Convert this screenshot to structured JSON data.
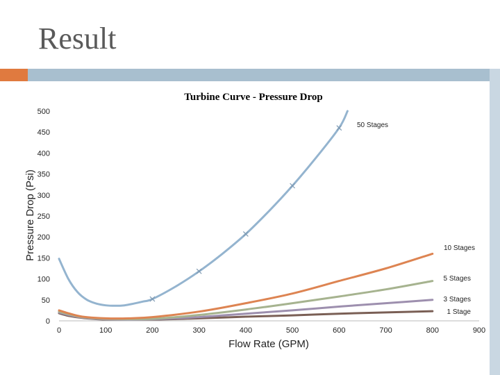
{
  "slide": {
    "title": "Result"
  },
  "theme": {
    "accent": "#e07a3f",
    "rule": "#a8bfcf"
  },
  "chart_data": {
    "type": "line",
    "title": "Turbine Curve - Pressure Drop",
    "xlabel": "Flow Rate (GPM)",
    "ylabel": "Pressure Drop (Psi)",
    "xlim": [
      0,
      900
    ],
    "ylim": [
      0,
      500
    ],
    "xticks": [
      0,
      100,
      200,
      300,
      400,
      500,
      600,
      700,
      800,
      900
    ],
    "yticks": [
      0,
      50,
      100,
      150,
      200,
      250,
      300,
      350,
      400,
      450,
      500
    ],
    "series": [
      {
        "name": "50 Stages",
        "color": "#94b4cf",
        "width": 3,
        "x": [
          0,
          20,
          40,
          60,
          80,
          100,
          120,
          140,
          160,
          180,
          200,
          250,
          300,
          350,
          400,
          450,
          500,
          550,
          600,
          618
        ],
        "y": [
          148,
          100,
          68,
          50,
          41,
          37,
          36,
          37,
          41,
          46,
          52,
          82,
          118,
          160,
          207,
          262,
          322,
          388,
          460,
          500
        ],
        "markers_x": [
          200,
          300,
          400,
          500,
          600
        ],
        "markers_y": [
          52,
          118,
          207,
          322,
          460
        ]
      },
      {
        "name": "10 Stages",
        "color": "#dd8452",
        "width": 3,
        "x": [
          0,
          20,
          50,
          100,
          150,
          200,
          300,
          400,
          500,
          600,
          700,
          800
        ],
        "y": [
          25,
          18,
          10,
          6,
          6,
          9,
          22,
          42,
          65,
          95,
          125,
          160
        ]
      },
      {
        "name": "5 Stages",
        "color": "#a6b38f",
        "width": 3,
        "x": [
          0,
          20,
          50,
          100,
          200,
          300,
          400,
          500,
          600,
          700,
          800
        ],
        "y": [
          22,
          16,
          9,
          5,
          5,
          14,
          27,
          42,
          58,
          75,
          95
        ]
      },
      {
        "name": "3 Stages",
        "color": "#9d8fae",
        "width": 3,
        "x": [
          0,
          20,
          50,
          100,
          200,
          300,
          400,
          500,
          600,
          700,
          800
        ],
        "y": [
          20,
          14,
          8,
          4,
          4,
          9,
          17,
          25,
          34,
          42,
          50
        ]
      },
      {
        "name": "1 Stage",
        "color": "#7a5f55",
        "width": 3,
        "x": [
          0,
          20,
          50,
          100,
          200,
          300,
          400,
          500,
          600,
          700,
          800
        ],
        "y": [
          18,
          12,
          7,
          3,
          3,
          6,
          10,
          13,
          17,
          20,
          23
        ]
      }
    ]
  }
}
